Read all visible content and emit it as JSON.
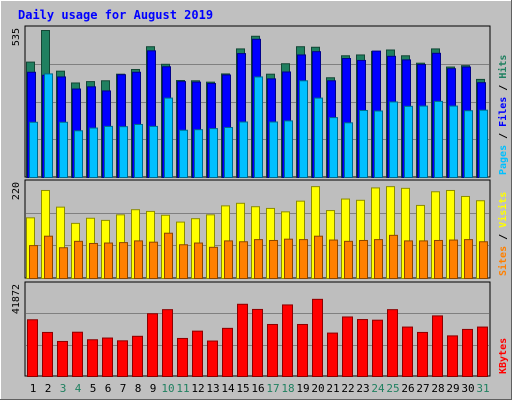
{
  "title": "Daily usage for August 2019",
  "colors": {
    "background": "#c0c0c0",
    "panel": "#bebebe",
    "hits": "#208060",
    "files": "#0000ff",
    "pages": "#00c0ff",
    "visits": "#ffff00",
    "sites": "#ff8000",
    "kbytes": "#ff0000",
    "title": "#0000ff",
    "weekend_label": "#208060"
  },
  "chart_data": [
    {
      "type": "bar",
      "title": "Daily usage for August 2019",
      "max_label": "535",
      "legend": [
        "Pages",
        "Files",
        "Hits"
      ],
      "categories": [
        "1",
        "2",
        "3",
        "4",
        "5",
        "6",
        "7",
        "8",
        "9",
        "10",
        "11",
        "12",
        "13",
        "14",
        "15",
        "16",
        "17",
        "18",
        "19",
        "20",
        "21",
        "22",
        "23",
        "24",
        "25",
        "26",
        "27",
        "28",
        "29",
        "30",
        "31"
      ],
      "ylim": [
        0,
        535
      ],
      "series": [
        {
          "name": "Hits",
          "values": [
            420,
            535,
            387,
            344,
            349,
            352,
            376,
            393,
            476,
            412,
            353,
            352,
            347,
            377,
            468,
            514,
            376,
            414,
            476,
            474,
            363,
            443,
            446,
            459,
            464,
            443,
            416,
            468,
            402,
            407,
            357
          ]
        },
        {
          "name": "Files",
          "values": [
            383,
            372,
            366,
            322,
            330,
            315,
            374,
            383,
            461,
            403,
            349,
            347,
            342,
            373,
            451,
            503,
            359,
            384,
            446,
            458,
            352,
            433,
            426,
            460,
            441,
            428,
            411,
            452,
            396,
            402,
            345
          ]
        },
        {
          "name": "Pages",
          "values": [
            201,
            377,
            201,
            170,
            180,
            186,
            185,
            193,
            186,
            289,
            172,
            174,
            178,
            182,
            202,
            366,
            202,
            206,
            352,
            289,
            218,
            199,
            244,
            242,
            275,
            259,
            260,
            277,
            260,
            243,
            245
          ]
        }
      ]
    },
    {
      "type": "bar",
      "max_label": "220",
      "legend": [
        "Sites",
        "Visits"
      ],
      "categories": [
        "1",
        "2",
        "3",
        "4",
        "5",
        "6",
        "7",
        "8",
        "9",
        "10",
        "11",
        "12",
        "13",
        "14",
        "15",
        "16",
        "17",
        "18",
        "19",
        "20",
        "21",
        "22",
        "23",
        "24",
        "25",
        "26",
        "27",
        "28",
        "29",
        "30",
        "31"
      ],
      "ylim": [
        0,
        220
      ],
      "series": [
        {
          "name": "Visits",
          "values": [
            142,
            206,
            167,
            129,
            141,
            136,
            149,
            161,
            157,
            148,
            132,
            140,
            149,
            170,
            176,
            168,
            164,
            156,
            181,
            215,
            159,
            186,
            183,
            212,
            215,
            211,
            171,
            203,
            206,
            192,
            182
          ]
        },
        {
          "name": "Sites",
          "values": [
            77,
            99,
            72,
            87,
            82,
            83,
            84,
            88,
            85,
            106,
            79,
            83,
            73,
            88,
            86,
            91,
            89,
            92,
            91,
            99,
            90,
            87,
            89,
            91,
            101,
            88,
            88,
            89,
            90,
            91,
            86
          ]
        }
      ]
    },
    {
      "type": "bar",
      "max_label": "41872",
      "legend": [
        "KBytes"
      ],
      "categories": [
        "1",
        "2",
        "3",
        "4",
        "5",
        "6",
        "7",
        "8",
        "9",
        "10",
        "11",
        "12",
        "13",
        "14",
        "15",
        "16",
        "17",
        "18",
        "19",
        "20",
        "21",
        "22",
        "23",
        "24",
        "25",
        "26",
        "27",
        "28",
        "29",
        "30",
        "31"
      ],
      "ylim": [
        0,
        41872
      ],
      "series": [
        {
          "name": "KBytes",
          "values": [
            26400,
            20500,
            16300,
            20600,
            17100,
            17900,
            16600,
            18700,
            29200,
            31100,
            17700,
            21100,
            16500,
            22400,
            33600,
            31200,
            24200,
            33300,
            24200,
            35900,
            20200,
            27700,
            26500,
            26200,
            31100,
            23000,
            20500,
            28200,
            18900,
            21900,
            23000
          ]
        }
      ]
    }
  ]
}
